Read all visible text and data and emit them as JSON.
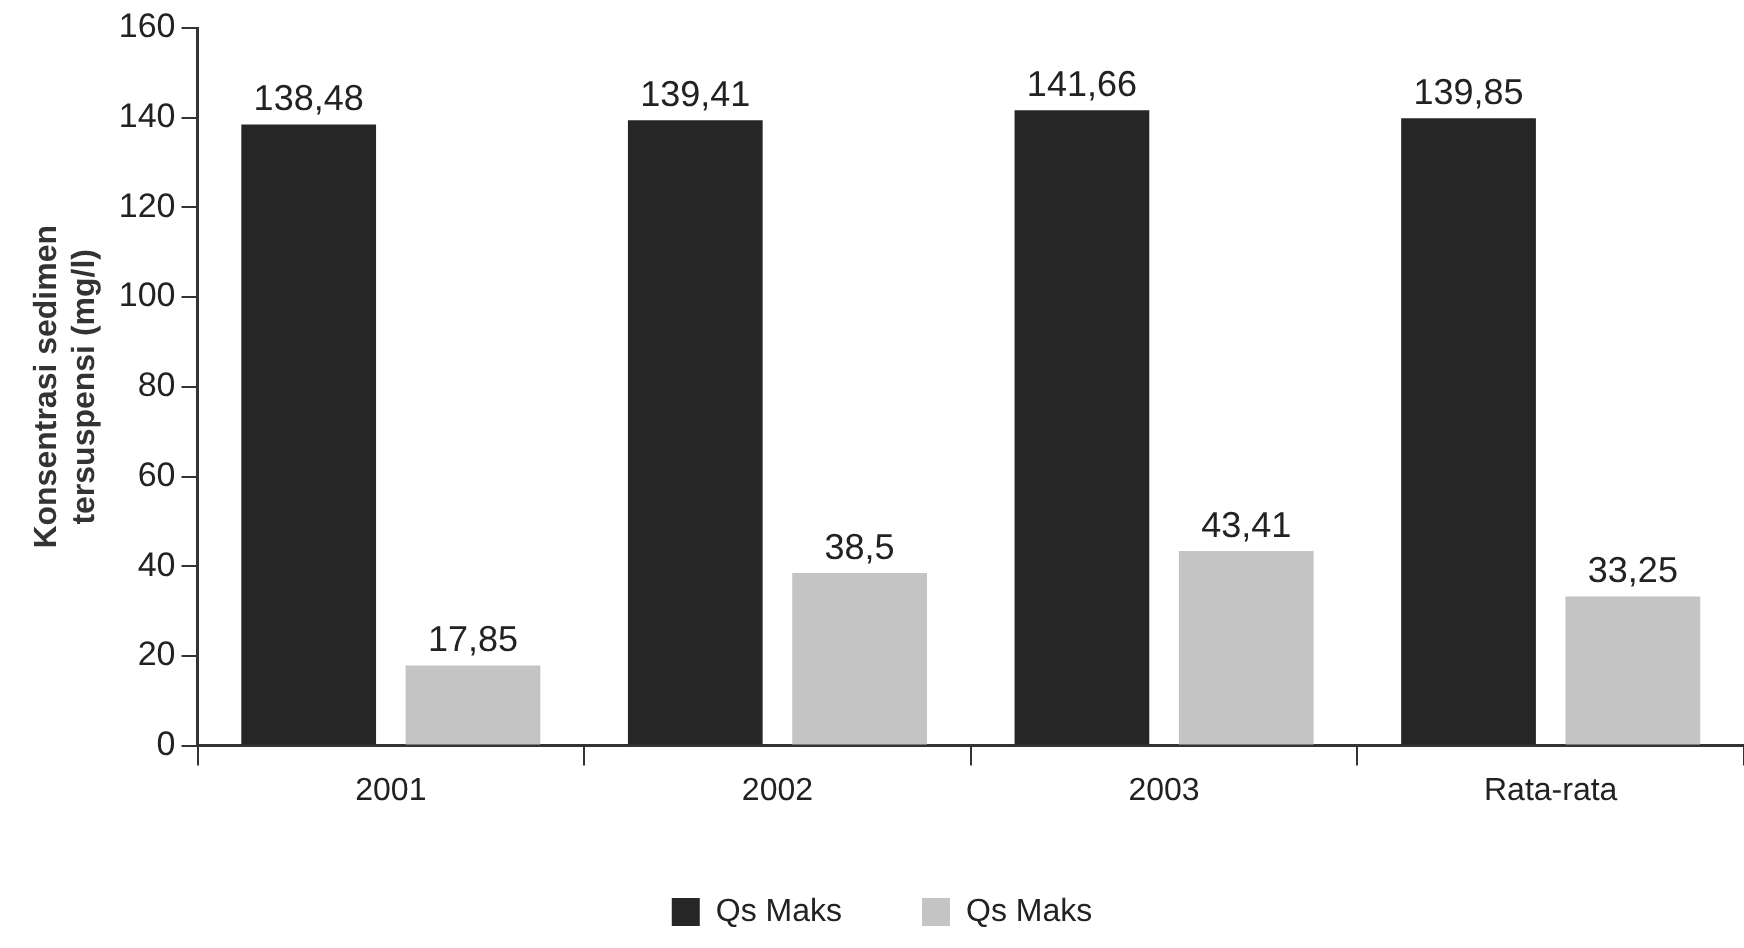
{
  "chart_data": {
    "type": "bar",
    "ylabel": "Konsentrasi sedimen tersuspensi (mg/l)",
    "categories": [
      "2001",
      "2002",
      "2003",
      "Rata-rata"
    ],
    "series": [
      {
        "name": "Qs Maks",
        "color": "#262626",
        "values": [
          138.48,
          139.41,
          141.66,
          139.85
        ],
        "value_labels": [
          "138,48",
          "139,41",
          "141,66",
          "139,85"
        ]
      },
      {
        "name": "Qs Maks",
        "color": "#c4c4c4",
        "values": [
          17.85,
          38.5,
          43.41,
          33.25
        ],
        "value_labels": [
          "17,85",
          "38,5",
          "43,41",
          "33,25"
        ]
      }
    ],
    "ylim": [
      0,
      160
    ],
    "yticks": [
      0,
      20,
      40,
      60,
      80,
      100,
      120,
      140,
      160
    ],
    "grid": false,
    "legend": "bottom"
  }
}
